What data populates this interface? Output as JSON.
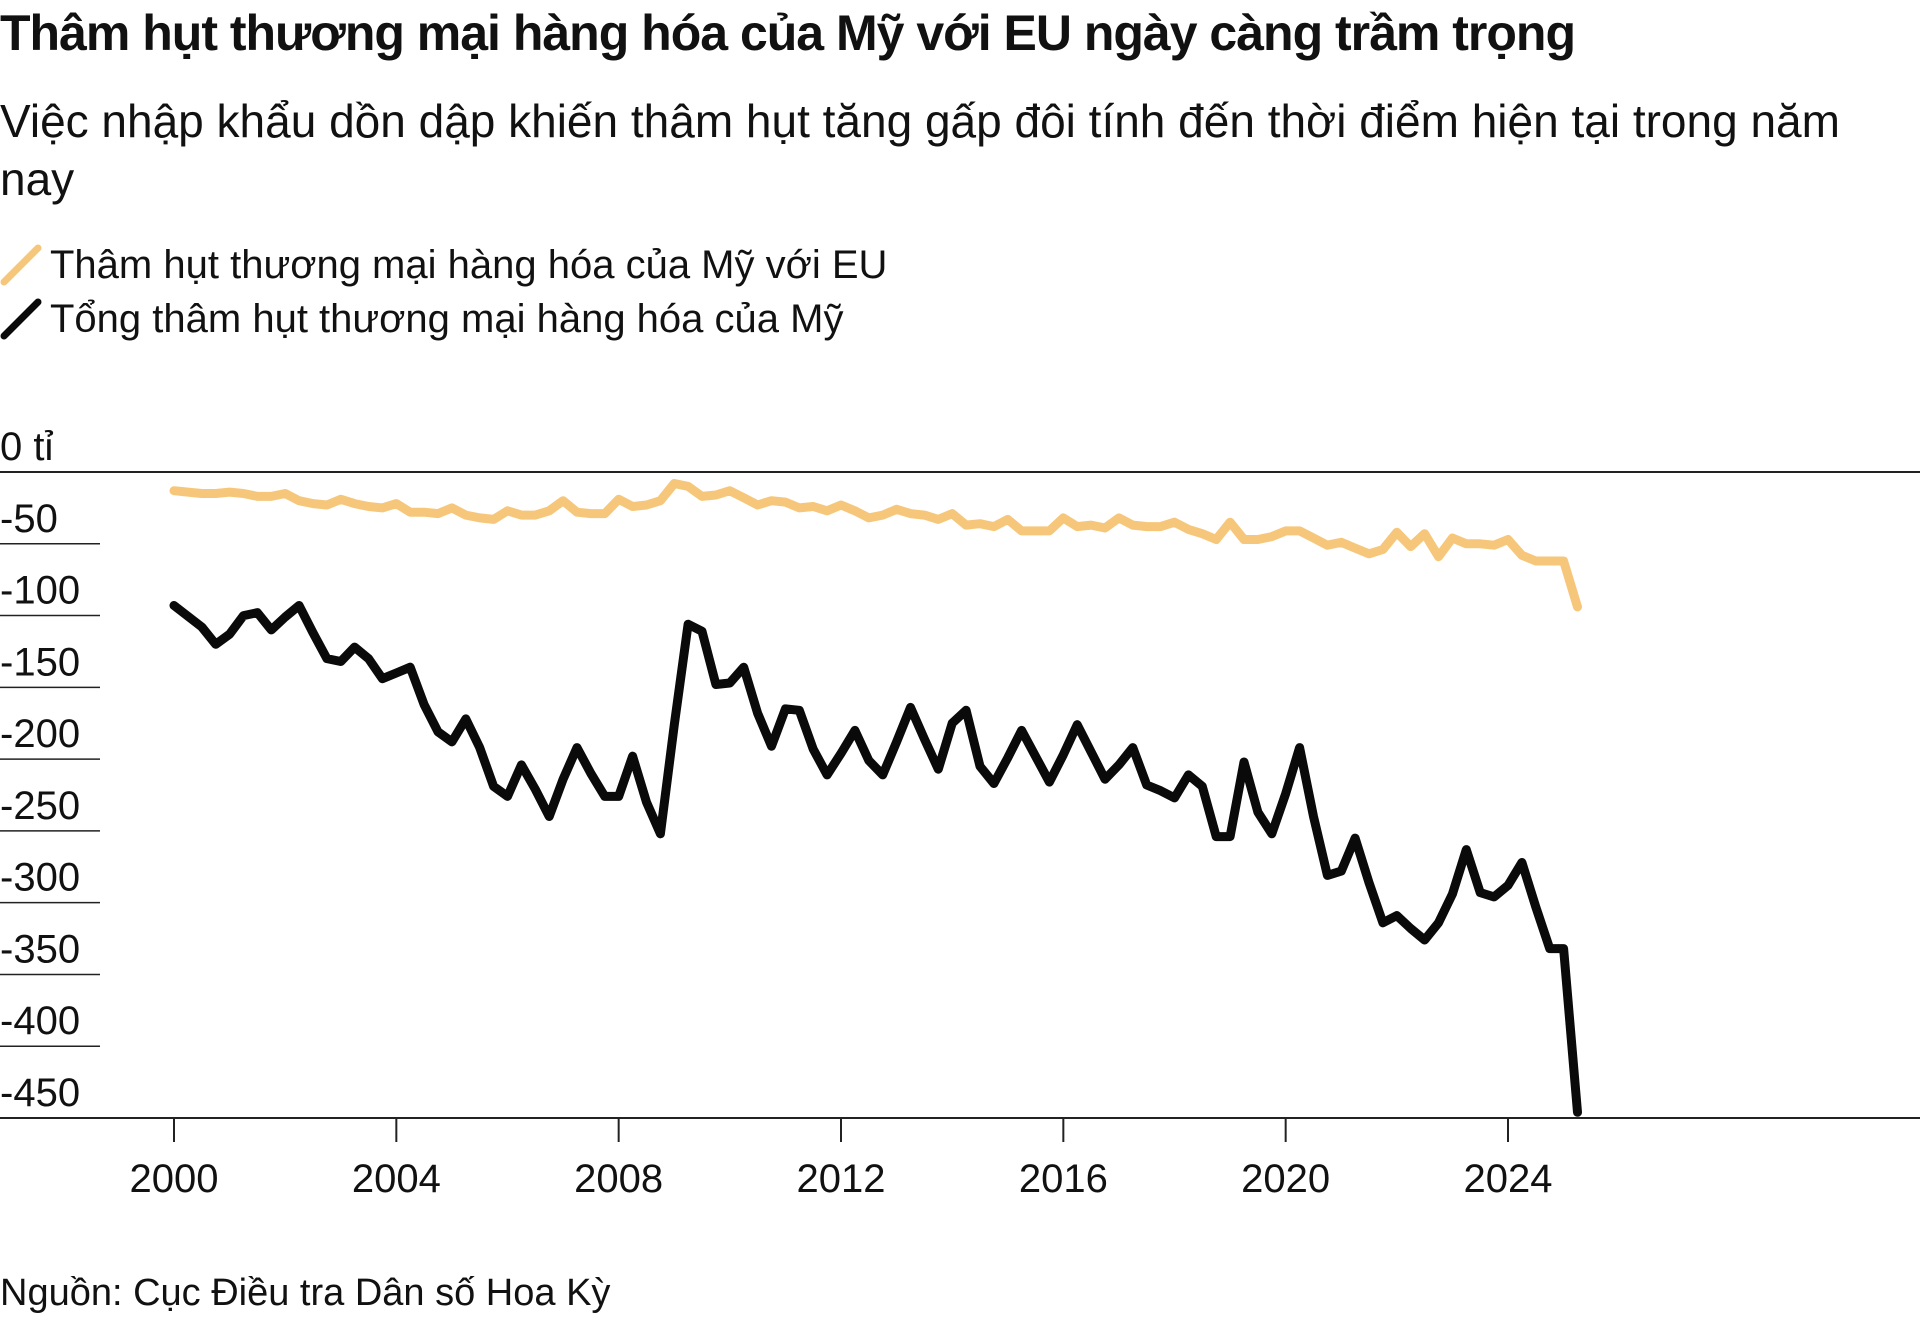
{
  "title": "Thâm hụt thương mại hàng hóa của Mỹ với EU ngày càng trầm trọng",
  "subtitle": "Việc nhập khẩu dồn dập khiến thâm hụt tăng gấp đôi tính đến thời điểm hiện tại trong năm nay",
  "source": "Nguồn: Cục Điều tra Dân số Hoa Kỳ",
  "legend": [
    {
      "label": "Thâm hụt thương mại hàng hóa của Mỹ với EU",
      "color": "#f6c77a"
    },
    {
      "label": "Tổng thâm hụt thương mại hàng hóa của Mỹ",
      "color": "#0a0a0a"
    }
  ],
  "chart_data": {
    "type": "line",
    "title": "Thâm hụt thương mại hàng hóa của Mỹ với EU ngày càng trầm trọng",
    "ylim": [
      -450,
      0
    ],
    "xlim": [
      2000,
      2025.25
    ],
    "y_ticks": [
      0,
      -50,
      -100,
      -150,
      -200,
      -250,
      -300,
      -350,
      -400,
      -450
    ],
    "y_tick_labels": [
      "0 tỉ",
      "-50",
      "-100",
      "-150",
      "-200",
      "-250",
      "-300",
      "-350",
      "-400",
      "-450"
    ],
    "x_ticks": [
      2000,
      2004,
      2008,
      2012,
      2016,
      2020,
      2024
    ],
    "x_tick_labels": [
      "2000",
      "2004",
      "2008",
      "2012",
      "2016",
      "2020",
      "2024"
    ],
    "grid": "horizontal",
    "legend_position": "top-left",
    "series": [
      {
        "name": "Thâm hụt thương mại hàng hóa của Mỹ với EU",
        "color": "#f6c77a",
        "x": [
          2000.0,
          2000.25,
          2000.5,
          2000.75,
          2001.0,
          2001.25,
          2001.5,
          2001.75,
          2002.0,
          2002.25,
          2002.5,
          2002.75,
          2003.0,
          2003.25,
          2003.5,
          2003.75,
          2004.0,
          2004.25,
          2004.5,
          2004.75,
          2005.0,
          2005.25,
          2005.5,
          2005.75,
          2006.0,
          2006.25,
          2006.5,
          2006.75,
          2007.0,
          2007.25,
          2007.5,
          2007.75,
          2008.0,
          2008.25,
          2008.5,
          2008.75,
          2009.0,
          2009.25,
          2009.5,
          2009.75,
          2010.0,
          2010.25,
          2010.5,
          2010.75,
          2011.0,
          2011.25,
          2011.5,
          2011.75,
          2012.0,
          2012.25,
          2012.5,
          2012.75,
          2013.0,
          2013.25,
          2013.5,
          2013.75,
          2014.0,
          2014.25,
          2014.5,
          2014.75,
          2015.0,
          2015.25,
          2015.5,
          2015.75,
          2016.0,
          2016.25,
          2016.5,
          2016.75,
          2017.0,
          2017.25,
          2017.5,
          2017.75,
          2018.0,
          2018.25,
          2018.5,
          2018.75,
          2019.0,
          2019.25,
          2019.5,
          2019.75,
          2020.0,
          2020.25,
          2020.5,
          2020.75,
          2021.0,
          2021.25,
          2021.5,
          2021.75,
          2022.0,
          2022.25,
          2022.5,
          2022.75,
          2023.0,
          2023.25,
          2023.5,
          2023.75,
          2024.0,
          2024.25,
          2024.5,
          2024.75,
          2025.0,
          2025.25
        ],
        "values": [
          -13,
          -14,
          -15,
          -15,
          -14,
          -15,
          -17,
          -17,
          -15,
          -20,
          -22,
          -23,
          -19,
          -22,
          -24,
          -25,
          -22,
          -28,
          -28,
          -29,
          -25,
          -30,
          -32,
          -33,
          -27,
          -30,
          -30,
          -27,
          -20,
          -28,
          -29,
          -29,
          -19,
          -24,
          -23,
          -20,
          -8,
          -10,
          -17,
          -16,
          -13,
          -18,
          -23,
          -20,
          -21,
          -25,
          -24,
          -27,
          -23,
          -27,
          -32,
          -30,
          -26,
          -29,
          -30,
          -33,
          -29,
          -37,
          -36,
          -38,
          -33,
          -41,
          -41,
          -41,
          -32,
          -38,
          -37,
          -39,
          -32,
          -37,
          -38,
          -38,
          -35,
          -40,
          -43,
          -47,
          -35,
          -47,
          -47,
          -45,
          -41,
          -41,
          -46,
          -51,
          -49,
          -53,
          -57,
          -54,
          -42,
          -52,
          -43,
          -59,
          -46,
          -50,
          -50,
          -51,
          -47,
          -58,
          -62,
          -62,
          -62,
          -94
        ]
      },
      {
        "name": "Tổng thâm hụt thương mại hàng hóa của Mỹ",
        "color": "#0a0a0a",
        "x": [
          2000.0,
          2000.5,
          2000.75,
          2001.0,
          2001.25,
          2001.5,
          2001.75,
          2002.0,
          2002.25,
          2002.5,
          2002.75,
          2003.0,
          2003.25,
          2003.5,
          2003.75,
          2004.0,
          2004.25,
          2004.5,
          2004.75,
          2005.0,
          2005.25,
          2005.5,
          2005.75,
          2006.0,
          2006.25,
          2006.5,
          2006.75,
          2007.0,
          2007.25,
          2007.5,
          2007.75,
          2008.0,
          2008.25,
          2008.5,
          2008.75,
          2009.0,
          2009.25,
          2009.5,
          2009.75,
          2010.0,
          2010.25,
          2010.5,
          2010.75,
          2011.0,
          2011.25,
          2011.5,
          2011.75,
          2012.0,
          2012.25,
          2012.5,
          2012.75,
          2013.0,
          2013.25,
          2013.5,
          2013.75,
          2014.0,
          2014.25,
          2014.5,
          2014.75,
          2015.0,
          2015.25,
          2015.5,
          2015.75,
          2016.0,
          2016.25,
          2016.5,
          2016.75,
          2017.0,
          2017.25,
          2017.5,
          2017.75,
          2018.0,
          2018.25,
          2018.5,
          2018.75,
          2019.0,
          2019.25,
          2019.5,
          2019.75,
          2020.0,
          2020.25,
          2020.5,
          2020.75,
          2021.0,
          2021.25,
          2021.5,
          2021.75,
          2022.0,
          2022.25,
          2022.5,
          2022.75,
          2023.0,
          2023.25,
          2023.5,
          2023.75,
          2024.0,
          2024.25,
          2024.5,
          2024.75,
          2025.0,
          2025.25
        ],
        "values": [
          -93,
          -108,
          -120,
          -113,
          -100,
          -98,
          -110,
          -101,
          -93,
          -112,
          -130,
          -132,
          -122,
          -130,
          -144,
          -140,
          -136,
          -162,
          -181,
          -188,
          -172,
          -192,
          -219,
          -226,
          -204,
          -221,
          -240,
          -214,
          -192,
          -210,
          -226,
          -226,
          -198,
          -230,
          -252,
          -176,
          -106,
          -111,
          -148,
          -147,
          -136,
          -168,
          -191,
          -165,
          -166,
          -193,
          -211,
          -196,
          -180,
          -201,
          -211,
          -188,
          -164,
          -186,
          -207,
          -175,
          -166,
          -205,
          -217,
          -199,
          -180,
          -198,
          -216,
          -197,
          -176,
          -195,
          -214,
          -204,
          -192,
          -218,
          -222,
          -227,
          -211,
          -219,
          -254,
          -254,
          -202,
          -237,
          -252,
          -224,
          -192,
          -240,
          -281,
          -278,
          -255,
          -286,
          -314,
          -309,
          -318,
          -326,
          -314,
          -294,
          -263,
          -293,
          -296,
          -288,
          -272,
          -303,
          -332,
          -332,
          -446
        ]
      }
    ]
  }
}
